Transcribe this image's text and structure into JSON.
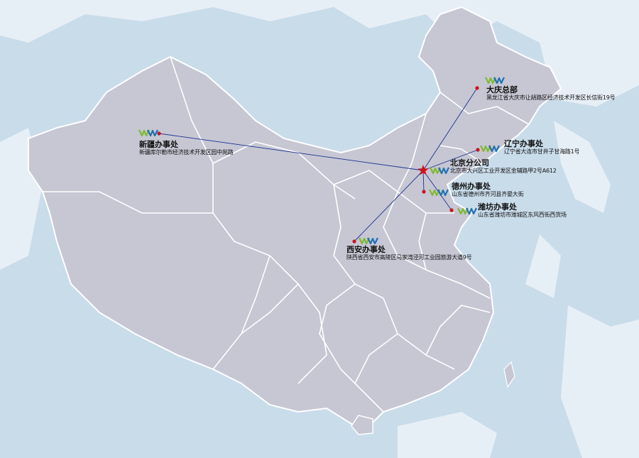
{
  "map": {
    "colors": {
      "ocean": "#c9dcea",
      "land_bg": "#ffffff",
      "china": "#c6c7d3",
      "province_border": "#ffffff",
      "route_line": "#1b2f8f",
      "marker": "#d0121b",
      "star": "#d0121b",
      "logo_green": "#7dbb2b",
      "logo_blue": "#1e6fb7"
    },
    "hq_marker": "star-icon",
    "office_marker": "red-dot",
    "logo_icon": "company-logo-icon",
    "offices": [
      {
        "id": "daqing",
        "name": "大庆总部",
        "address": "黑龙江省大庆市让胡路区经济技术开发区长信街19号"
      },
      {
        "id": "xinjiang",
        "name": "新疆办事处",
        "address": "新疆库尔勒市经济技术开发区园中苑路"
      },
      {
        "id": "liaoning",
        "name": "辽宁办事处",
        "address": "辽宁省大连市甘井子甘海路1号"
      },
      {
        "id": "beijing",
        "name": "北京分公司",
        "address": "北京市大兴区工业开发区金辅路甲2号A612"
      },
      {
        "id": "dezhou",
        "name": "德州办事处",
        "address": "山东省德州市齐河县齐晏大街"
      },
      {
        "id": "weifang",
        "name": "潍坊办事处",
        "address": "山东省潍坊市潍城区东风西街西货场"
      },
      {
        "id": "xian",
        "name": "西安办事处",
        "address": "陕西省西安市高陵区马家湾泾河工业园旅游大道9号"
      }
    ]
  }
}
